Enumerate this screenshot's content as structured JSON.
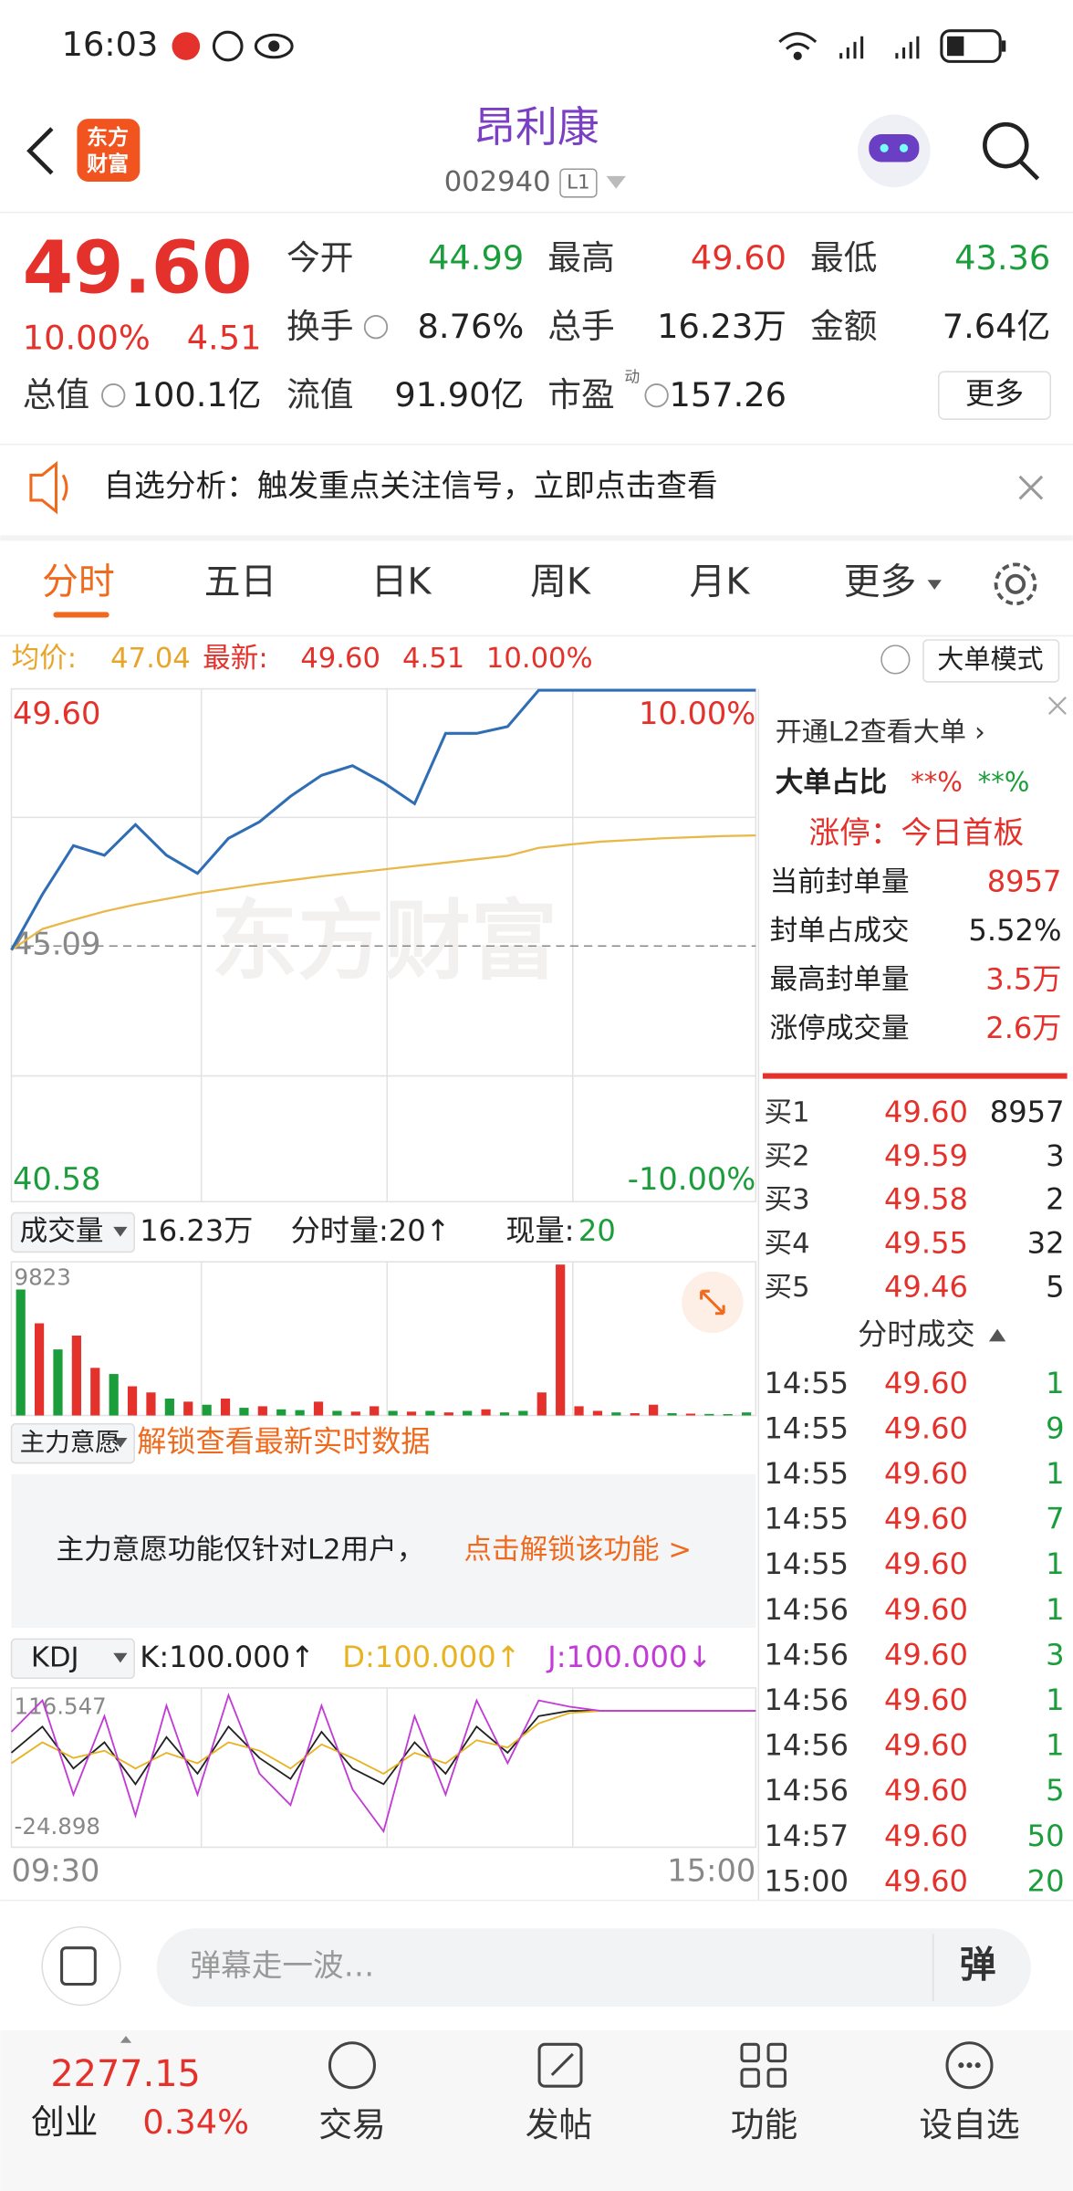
{
  "status_bar": {
    "time": "16:03"
  },
  "header": {
    "logo": [
      "东方",
      "财富"
    ],
    "title": "昂利康",
    "code": "002940",
    "level": "L1"
  },
  "quote": {
    "price": "49.60",
    "change_pct": "10.00%",
    "change": "4.51",
    "fields": [
      {
        "label": "今开",
        "value": "44.99",
        "color": "#1a9d3a"
      },
      {
        "label": "最高",
        "value": "49.60",
        "color": "#e4312b"
      },
      {
        "label": "最低",
        "value": "43.36",
        "color": "#1a9d3a"
      },
      {
        "label": "换手",
        "value": "8.76%",
        "color": "#222222"
      },
      {
        "label": "总手",
        "value": "16.23万",
        "color": "#222222"
      },
      {
        "label": "金额",
        "value": "7.64亿",
        "color": "#222222"
      },
      {
        "label": "总值",
        "value": "100.1亿",
        "color": "#222222"
      },
      {
        "label": "流值",
        "value": "91.90亿",
        "color": "#222222"
      },
      {
        "label": "市盈",
        "value": "157.26",
        "color": "#222222"
      }
    ],
    "pe_note": "动",
    "more_button": "更多"
  },
  "notice": {
    "text": "自选分析：触发重点关注信号，立即点击查看"
  },
  "tabs": [
    "分时",
    "五日",
    "日K",
    "周K",
    "月K",
    "更多"
  ],
  "chart_info": {
    "avg_label": "均价:",
    "avg": "47.04",
    "latest_label": "最新:",
    "latest": "49.60",
    "change": "4.51",
    "change_pct": "10.00%",
    "mode_button": "大单模式"
  },
  "intraday": {
    "type": "line",
    "watermark": "东方财富",
    "ylim": [
      40.58,
      49.6
    ],
    "yticks": [
      {
        "value": 49.6,
        "label": "49.60"
      },
      {
        "value": 45.09,
        "label": "45.09"
      },
      {
        "value": 40.58,
        "label": "40.58"
      }
    ],
    "pct_lim": [
      -10,
      10
    ],
    "pct_ticks": [
      {
        "value": 10,
        "label": "10.00%"
      },
      {
        "value": -10,
        "label": "-10.00%"
      }
    ],
    "x_labels": [
      "09:30",
      "15:00"
    ],
    "price": {
      "color": "#2f6db5",
      "values": [
        45.02,
        46.0,
        46.86,
        46.69,
        47.23,
        46.69,
        46.37,
        46.99,
        47.28,
        47.73,
        48.1,
        48.27,
        47.97,
        47.6,
        48.84,
        48.84,
        48.96,
        49.6,
        49.6,
        49.6,
        49.6,
        49.6,
        49.6,
        49.6,
        49.6
      ]
    },
    "avg": {
      "color": "#e8b84a",
      "values": [
        45.02,
        45.39,
        45.55,
        45.7,
        45.82,
        45.92,
        46.02,
        46.1,
        46.18,
        46.25,
        46.32,
        46.38,
        46.44,
        46.5,
        46.56,
        46.62,
        46.68,
        46.82,
        46.88,
        46.93,
        46.96,
        46.99,
        47.01,
        47.03,
        47.04
      ]
    }
  },
  "volume": {
    "type": "bar",
    "label": "成交量",
    "total": "16.23万",
    "per_minute": "分时量:20↑",
    "current_label": "现量:",
    "current": "20",
    "ylim": [
      0,
      9823
    ],
    "yticks": [
      9823
    ],
    "values": [
      8200,
      6000,
      4300,
      5200,
      3100,
      2700,
      1900,
      1500,
      1100,
      900,
      700,
      1100,
      500,
      600,
      400,
      350,
      900,
      300,
      250,
      600,
      300,
      250,
      300,
      200,
      300,
      400,
      200,
      300,
      1500,
      9823,
      600,
      300,
      200,
      150,
      700,
      150,
      120,
      100,
      90,
      200
    ],
    "colors": [
      "#1a9d3a",
      "#e4312b",
      "#1a9d3a",
      "#e4312b",
      "#e4312b",
      "#1a9d3a",
      "#e4312b",
      "#e4312b",
      "#1a9d3a",
      "#e4312b",
      "#1a9d3a",
      "#e4312b",
      "#1a9d3a",
      "#e4312b",
      "#1a9d3a",
      "#1a9d3a",
      "#e4312b",
      "#1a9d3a",
      "#e4312b",
      "#e4312b",
      "#1a9d3a",
      "#e4312b",
      "#1a9d3a",
      "#e4312b",
      "#1a9d3a",
      "#e4312b",
      "#1a9d3a",
      "#1a9d3a",
      "#e4312b",
      "#e4312b",
      "#e4312b",
      "#e4312b",
      "#1a9d3a",
      "#e4312b",
      "#e4312b",
      "#1a9d3a",
      "#e4312b",
      "#1a9d3a",
      "#1a9d3a",
      "#1a9d3a"
    ]
  },
  "main_force": {
    "label": "主力意愿",
    "unlock": "解锁查看最新实时数据",
    "notice": "主力意愿功能仅针对L2用户，",
    "link": "点击解锁该功能 >"
  },
  "kdj": {
    "type": "line",
    "label": "KDJ",
    "k_text": "K:100.000↑",
    "d_text": "D:100.000↑",
    "j_text": "J:100.000↓",
    "ylim": [
      -24.898,
      116.547
    ],
    "yticks": [
      116.547,
      -24.898
    ],
    "series": [
      {
        "name": "K",
        "color": "#222222",
        "values": [
          60,
          85,
          45,
          70,
          30,
          75,
          40,
          85,
          55,
          35,
          80,
          45,
          30,
          70,
          40,
          85,
          60,
          95,
          100,
          100,
          100,
          100,
          100,
          100,
          100
        ]
      },
      {
        "name": "D",
        "color": "#e8b323",
        "values": [
          50,
          70,
          55,
          62,
          45,
          60,
          50,
          70,
          62,
          45,
          68,
          55,
          40,
          60,
          50,
          72,
          65,
          88,
          98,
          100,
          100,
          100,
          100,
          100,
          100
        ]
      },
      {
        "name": "J",
        "color": "#c23bd6",
        "values": [
          80,
          110,
          20,
          95,
          0,
          105,
          20,
          115,
          40,
          10,
          105,
          25,
          -15,
          95,
          20,
          110,
          50,
          110,
          104,
          100,
          100,
          100,
          100,
          100,
          100
        ]
      }
    ]
  },
  "side_panel": {
    "l2_link": "开通L2查看大单 ›",
    "big_ratio_label": "大单占比",
    "big_ratio_red": "**%",
    "big_ratio_green": "**%",
    "limit_status": "涨停：今日首板",
    "rows": [
      {
        "label": "当前封单量",
        "value": "8957",
        "color": "#e4312b"
      },
      {
        "label": "封单占成交",
        "value": "5.52%",
        "color": "#222222"
      },
      {
        "label": "最高封单量",
        "value": "3.5万",
        "color": "#e4312b"
      },
      {
        "label": "涨停成交量",
        "value": "2.6万",
        "color": "#e4312b"
      }
    ],
    "bids": [
      [
        "买1",
        "49.60",
        "8957"
      ],
      [
        "买2",
        "49.59",
        "3"
      ],
      [
        "买3",
        "49.58",
        "2"
      ],
      [
        "买4",
        "49.55",
        "32"
      ],
      [
        "买5",
        "49.46",
        "5"
      ]
    ],
    "trades_title": "分时成交",
    "trades": [
      [
        "14:55",
        "49.60",
        "1"
      ],
      [
        "14:55",
        "49.60",
        "9"
      ],
      [
        "14:55",
        "49.60",
        "1"
      ],
      [
        "14:55",
        "49.60",
        "7"
      ],
      [
        "14:55",
        "49.60",
        "1"
      ],
      [
        "14:56",
        "49.60",
        "1"
      ],
      [
        "14:56",
        "49.60",
        "3"
      ],
      [
        "14:56",
        "49.60",
        "1"
      ],
      [
        "14:56",
        "49.60",
        "1"
      ],
      [
        "14:56",
        "49.60",
        "5"
      ],
      [
        "14:57",
        "49.60",
        "50"
      ],
      [
        "15:00",
        "49.60",
        "20"
      ]
    ]
  },
  "comment_bar": {
    "placeholder": "弹幕走一波…",
    "button": "弹"
  },
  "bottom_nav": {
    "index_value": "2277.15",
    "index_name": "创业",
    "index_pct": "0.34%",
    "items": [
      "交易",
      "发帖",
      "功能",
      "设自选"
    ]
  }
}
